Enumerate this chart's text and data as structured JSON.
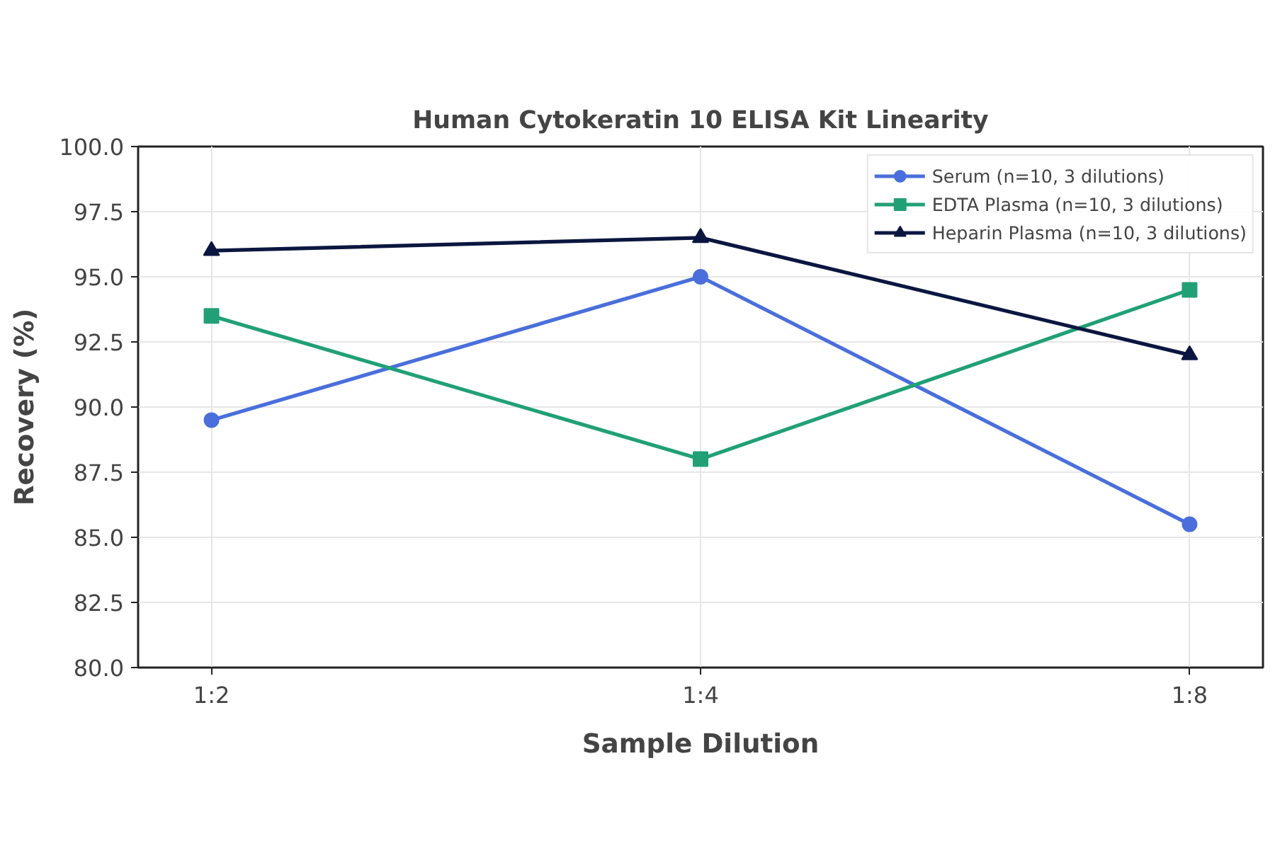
{
  "chart_data": {
    "type": "line",
    "title": "Human Cytokeratin 10 ELISA Kit Linearity",
    "xlabel": "Sample Dilution",
    "ylabel": "Recovery (%)",
    "categories": [
      "1:2",
      "1:4",
      "1:8"
    ],
    "series": [
      {
        "name": "Serum (n=10, 3 dilutions)",
        "color": "#4a6fdc",
        "marker": "circle",
        "values": [
          89.5,
          95.0,
          85.5
        ]
      },
      {
        "name": "EDTA Plasma (n=10, 3 dilutions)",
        "color": "#21a075",
        "marker": "square",
        "values": [
          93.5,
          88.0,
          94.5
        ]
      },
      {
        "name": "Heparin Plasma (n=10, 3 dilutions)",
        "color": "#0b1640",
        "marker": "triangle",
        "values": [
          96.0,
          96.5,
          92.0
        ]
      }
    ],
    "ylim": [
      80.0,
      100.0
    ],
    "yticks": [
      {
        "value": 80,
        "label": "80.0"
      },
      {
        "value": 82.5,
        "label": "82.5"
      },
      {
        "value": 85,
        "label": "85.0"
      },
      {
        "value": 87.5,
        "label": "87.5"
      },
      {
        "value": 90,
        "label": "90.0"
      },
      {
        "value": 92.5,
        "label": "92.5"
      },
      {
        "value": 95,
        "label": "95.0"
      },
      {
        "value": 97.5,
        "label": "97.5"
      },
      {
        "value": 100,
        "label": "100.0"
      }
    ],
    "grid": true,
    "legend": "top right",
    "line_style": "solid"
  }
}
